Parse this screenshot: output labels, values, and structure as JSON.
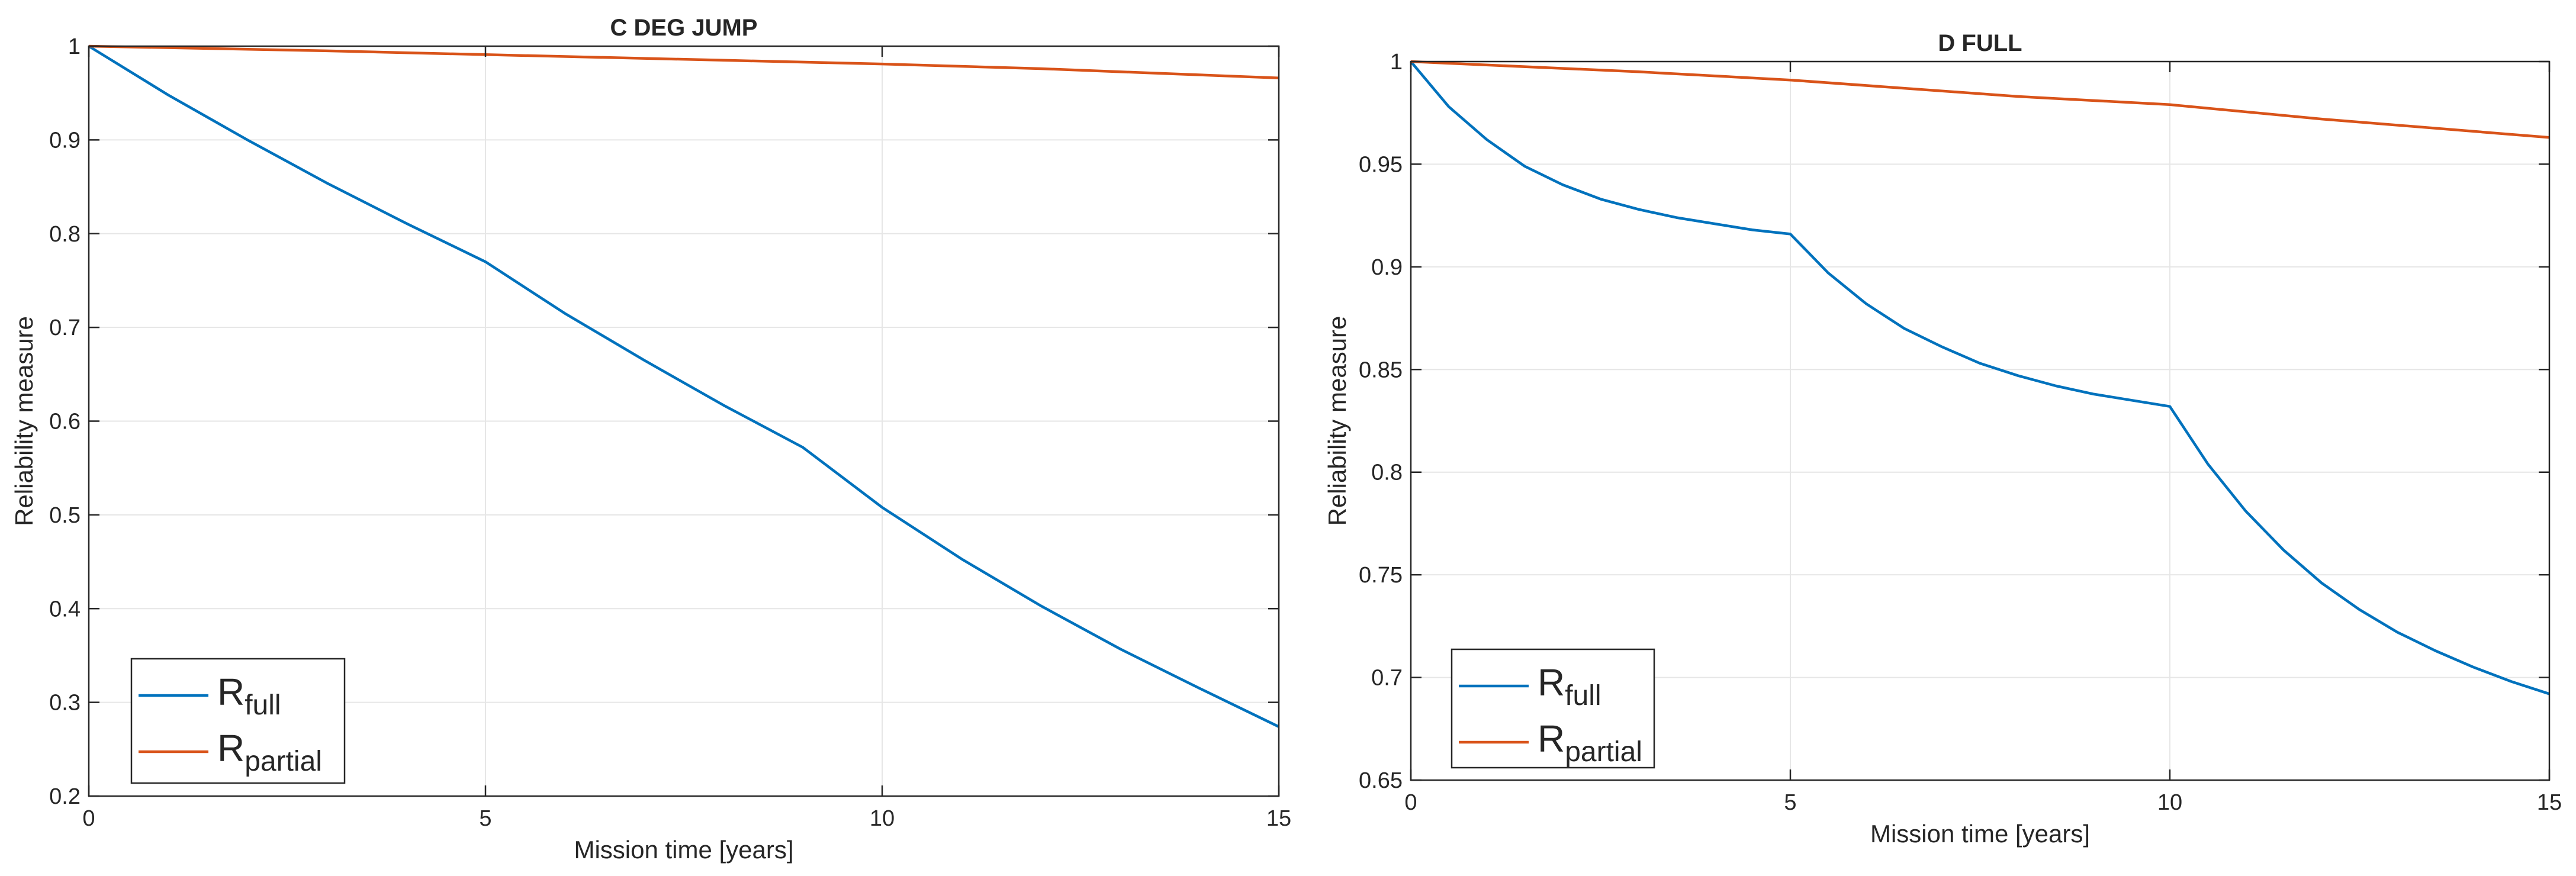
{
  "chart_data": [
    {
      "type": "line",
      "title": "C DEG JUMP",
      "xlabel": "Mission time [years]",
      "ylabel": "Reliability measure",
      "xlim": [
        0,
        15
      ],
      "ylim": [
        0.2,
        1
      ],
      "xticks": [
        0,
        5,
        10,
        15
      ],
      "xtick_labels": [
        "0",
        "5",
        "10",
        "15"
      ],
      "yticks": [
        0.2,
        0.3,
        0.4,
        0.5,
        0.6,
        0.7,
        0.8,
        0.9,
        1
      ],
      "ytick_labels": [
        "0.2",
        "0.3",
        "0.4",
        "0.5",
        "0.6",
        "0.7",
        "0.8",
        "0.9",
        "1"
      ],
      "grid": true,
      "legend": "bottom-left",
      "series": [
        {
          "name": "R",
          "subscript": "full",
          "color": "#0072BD",
          "x": [
            0,
            1,
            2,
            3,
            4,
            5,
            6,
            7,
            8,
            9,
            10,
            11,
            12,
            13,
            14,
            15
          ],
          "y": [
            1.0,
            0.948,
            0.9,
            0.854,
            0.811,
            0.77,
            0.715,
            0.665,
            0.617,
            0.572,
            0.508,
            0.453,
            0.403,
            0.357,
            0.315,
            0.274
          ]
        },
        {
          "name": "R",
          "subscript": "partial",
          "color": "#D95319",
          "x": [
            0,
            3,
            5,
            8,
            10,
            12,
            15
          ],
          "y": [
            1.0,
            0.995,
            0.991,
            0.985,
            0.981,
            0.976,
            0.966
          ]
        }
      ]
    },
    {
      "type": "line",
      "title": "D FULL",
      "xlabel": "Mission time [years]",
      "ylabel": "Reliability measure",
      "xlim": [
        0,
        15
      ],
      "ylim": [
        0.65,
        1
      ],
      "xticks": [
        0,
        5,
        10,
        15
      ],
      "xtick_labels": [
        "0",
        "5",
        "10",
        "15"
      ],
      "yticks": [
        0.65,
        0.7,
        0.75,
        0.8,
        0.85,
        0.9,
        0.95,
        1
      ],
      "ytick_labels": [
        "0.65",
        "0.7",
        "0.75",
        "0.8",
        "0.85",
        "0.9",
        "0.95",
        "1"
      ],
      "grid": true,
      "legend": "bottom-left",
      "series": [
        {
          "name": "R",
          "subscript": "full",
          "color": "#0072BD",
          "x": [
            0,
            0.5,
            1,
            1.5,
            2,
            2.5,
            3,
            3.5,
            4,
            4.5,
            5,
            5.5,
            6,
            6.5,
            7,
            7.5,
            8,
            8.5,
            9,
            9.5,
            10,
            10.5,
            11,
            11.5,
            12,
            12.5,
            13,
            13.5,
            14,
            14.5,
            15
          ],
          "y": [
            1.0,
            0.978,
            0.962,
            0.949,
            0.94,
            0.933,
            0.928,
            0.924,
            0.921,
            0.918,
            0.916,
            0.897,
            0.882,
            0.87,
            0.861,
            0.853,
            0.847,
            0.842,
            0.838,
            0.835,
            0.832,
            0.804,
            0.781,
            0.762,
            0.746,
            0.733,
            0.722,
            0.713,
            0.705,
            0.698,
            0.692
          ]
        },
        {
          "name": "R",
          "subscript": "partial",
          "color": "#D95319",
          "x": [
            0,
            3,
            5,
            8,
            10,
            12,
            15
          ],
          "y": [
            1.0,
            0.995,
            0.991,
            0.983,
            0.979,
            0.972,
            0.963
          ]
        }
      ]
    }
  ]
}
